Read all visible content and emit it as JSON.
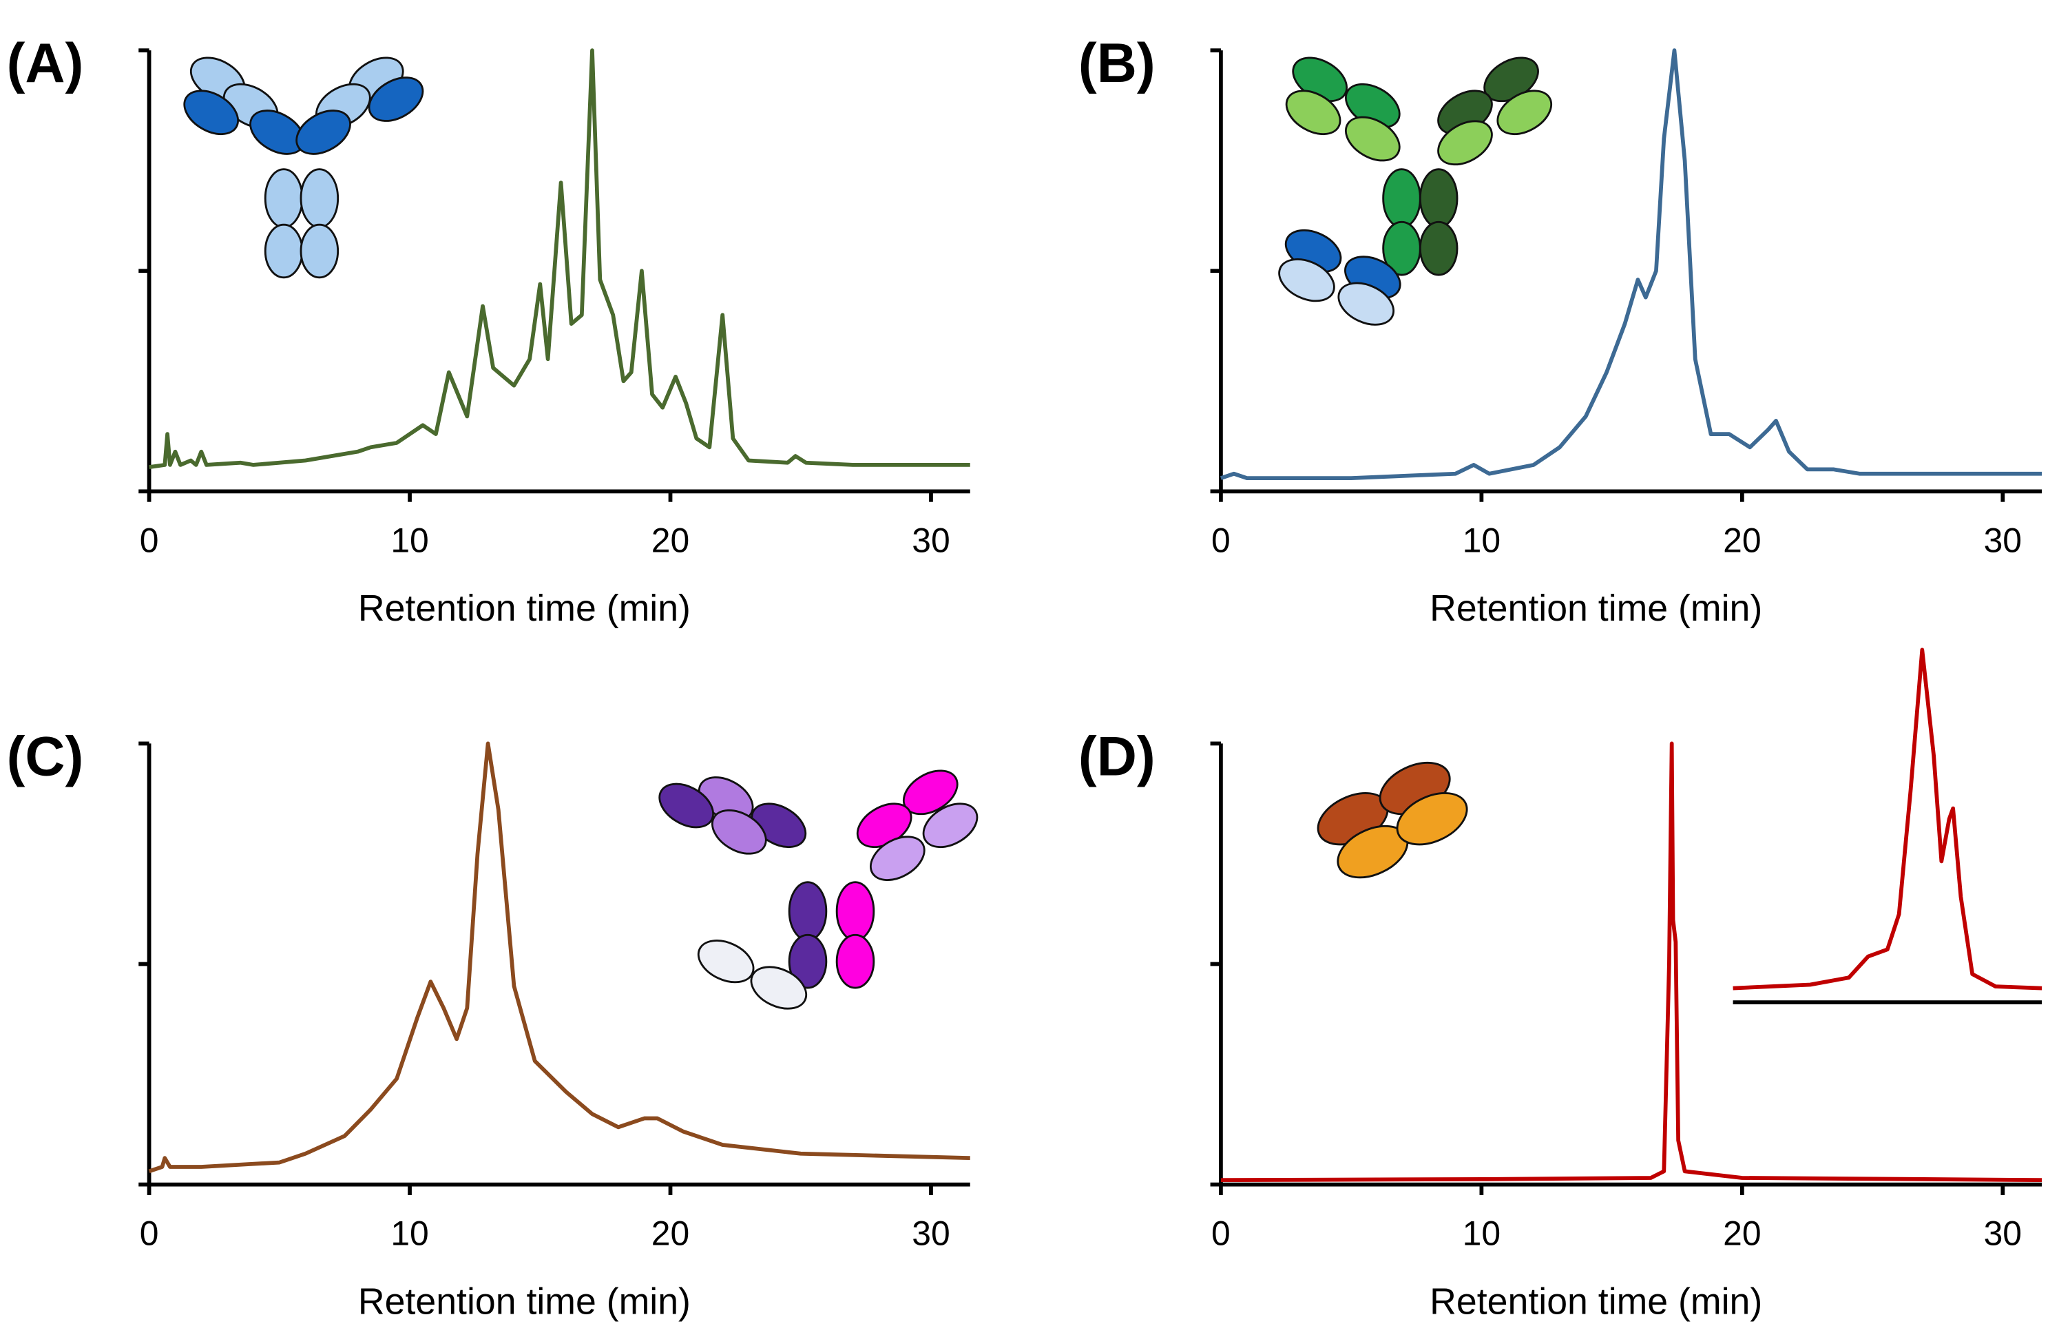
{
  "chart_data": [
    {
      "type": "line",
      "panel_label": "(A)",
      "xlabel": "Retention time (min)",
      "color": "#4a6a2e",
      "xlim": [
        0,
        31.5
      ],
      "ylim": [
        0,
        1
      ],
      "xticks": [
        0,
        10,
        20,
        30
      ],
      "yticks": [
        0,
        0.5,
        1
      ],
      "x": [
        0,
        0.6,
        0.7,
        0.8,
        1.0,
        1.2,
        1.6,
        1.8,
        2.0,
        2.2,
        3.5,
        4,
        6,
        8,
        8.5,
        9.5,
        10.5,
        11,
        11.5,
        12.2,
        12.8,
        13.2,
        13.6,
        14.0,
        14.6,
        15.0,
        15.3,
        15.8,
        16.2,
        16.6,
        17.0,
        17.3,
        17.8,
        18.2,
        18.5,
        18.9,
        19.3,
        19.7,
        20.2,
        20.6,
        21.0,
        21.5,
        22.0,
        22.4,
        23,
        24.5,
        24.8,
        25.2,
        27,
        31.5
      ],
      "values": [
        0.055,
        0.06,
        0.13,
        0.06,
        0.09,
        0.06,
        0.07,
        0.06,
        0.09,
        0.06,
        0.065,
        0.06,
        0.07,
        0.09,
        0.1,
        0.11,
        0.15,
        0.13,
        0.27,
        0.17,
        0.42,
        0.28,
        0.26,
        0.24,
        0.3,
        0.47,
        0.3,
        0.7,
        0.38,
        0.4,
        1.0,
        0.48,
        0.4,
        0.25,
        0.27,
        0.5,
        0.22,
        0.19,
        0.26,
        0.2,
        0.12,
        0.1,
        0.4,
        0.12,
        0.07,
        0.065,
        0.08,
        0.065,
        0.06,
        0.06
      ]
    },
    {
      "type": "line",
      "panel_label": "(B)",
      "xlabel": "Retention time (min)",
      "color": "#3d6a94",
      "xlim": [
        0,
        31.5
      ],
      "ylim": [
        0,
        1
      ],
      "xticks": [
        0,
        10,
        20,
        30
      ],
      "yticks": [
        0,
        0.5,
        1
      ],
      "x": [
        0,
        0.5,
        1,
        5,
        9,
        9.7,
        10.3,
        12,
        13,
        14,
        14.8,
        15.5,
        16.0,
        16.3,
        16.7,
        17.0,
        17.4,
        17.8,
        18.2,
        18.8,
        19.5,
        20.3,
        21.0,
        21.3,
        21.8,
        22.5,
        23.5,
        24.5,
        31.5
      ],
      "values": [
        0.03,
        0.04,
        0.03,
        0.03,
        0.04,
        0.06,
        0.04,
        0.06,
        0.1,
        0.17,
        0.27,
        0.38,
        0.48,
        0.44,
        0.5,
        0.8,
        1.0,
        0.75,
        0.3,
        0.13,
        0.13,
        0.1,
        0.14,
        0.16,
        0.09,
        0.05,
        0.05,
        0.04,
        0.04
      ]
    },
    {
      "type": "line",
      "panel_label": "(C)",
      "xlabel": "Retention time (min)",
      "color": "#8b4a1e",
      "xlim": [
        0,
        31.5
      ],
      "ylim": [
        0,
        1
      ],
      "xticks": [
        0,
        10,
        20,
        30
      ],
      "yticks": [
        0,
        0.5,
        1
      ],
      "x": [
        0,
        0.5,
        0.6,
        0.8,
        2,
        5,
        6,
        7.5,
        8.5,
        9.5,
        10.3,
        10.8,
        11.3,
        11.8,
        12.2,
        12.6,
        13.0,
        13.4,
        14.0,
        14.8,
        16,
        17,
        18,
        19,
        19.5,
        20.5,
        22,
        25,
        31.5
      ],
      "values": [
        0.03,
        0.04,
        0.06,
        0.04,
        0.04,
        0.05,
        0.07,
        0.11,
        0.17,
        0.24,
        0.38,
        0.46,
        0.4,
        0.33,
        0.4,
        0.75,
        1.0,
        0.85,
        0.45,
        0.28,
        0.21,
        0.16,
        0.13,
        0.15,
        0.15,
        0.12,
        0.09,
        0.07,
        0.06
      ]
    },
    {
      "type": "line",
      "panel_label": "(D)",
      "xlabel": "Retention time (min)",
      "color": "#c00000",
      "xlim": [
        0,
        31.5
      ],
      "ylim": [
        0,
        1
      ],
      "xticks": [
        0,
        10,
        20,
        30
      ],
      "yticks": [
        0,
        0.5,
        1
      ],
      "x": [
        0,
        10,
        16.5,
        17.0,
        17.2,
        17.3,
        17.35,
        17.45,
        17.55,
        17.8,
        20,
        31.5
      ],
      "values": [
        0.01,
        0.012,
        0.015,
        0.03,
        0.5,
        1.0,
        0.6,
        0.55,
        0.1,
        0.03,
        0.015,
        0.01
      ],
      "inset": {
        "xlim": [
          14,
          22
        ],
        "ylim": [
          0,
          1
        ],
        "x": [
          14,
          16,
          17,
          17.5,
          18,
          18.3,
          18.6,
          18.9,
          19.2,
          19.4,
          19.6,
          19.7,
          19.9,
          20.2,
          20.8,
          22
        ],
        "values": [
          0.04,
          0.05,
          0.07,
          0.13,
          0.15,
          0.25,
          0.6,
          1.0,
          0.7,
          0.4,
          0.52,
          0.55,
          0.3,
          0.08,
          0.045,
          0.04
        ]
      }
    }
  ]
}
